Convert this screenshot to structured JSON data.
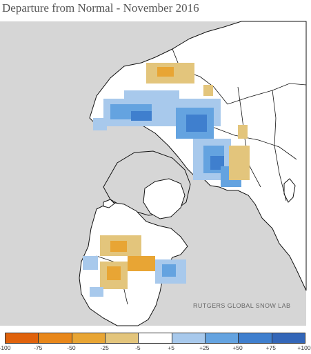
{
  "title": "Departure from Normal - November 2016",
  "credit": "RUTGERS GLOBAL SNOW LAB",
  "colors": {
    "background": "#d6d6d6",
    "land": "#ffffff",
    "coast": "#111111",
    "neg_100": "#e0620c",
    "neg_75": "#e8871a",
    "neg_50": "#e8a534",
    "neg_25": "#e3c57c",
    "neutral": "#ffffff",
    "pos_25": "#a8c9ec",
    "pos_50": "#64a3e0",
    "pos_75": "#3f7fce",
    "pos_100": "#3366b8"
  },
  "legend": {
    "swatch_colors": [
      "#e0620c",
      "#e8871a",
      "#e8a534",
      "#e3c57c",
      "#ffffff",
      "#a8c9ec",
      "#64a3e0",
      "#3f7fce",
      "#3366b8"
    ],
    "labels": [
      "-100",
      "-75",
      "-50",
      "-25",
      "-5",
      "+5",
      "+25",
      "+50",
      "+75",
      "+100"
    ]
  }
}
